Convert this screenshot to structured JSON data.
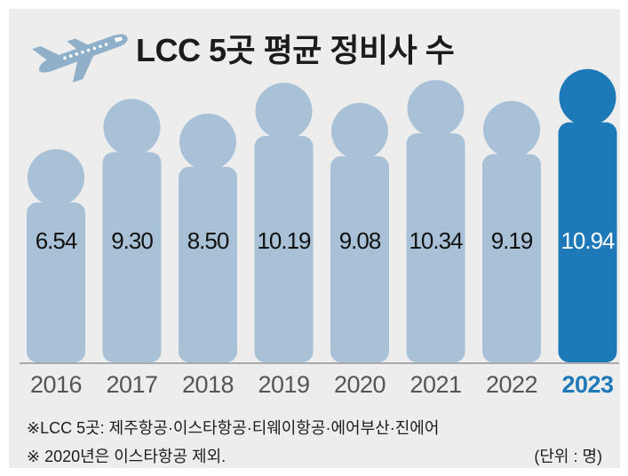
{
  "title": "LCC 5곳 평균 정비사 수",
  "notes": {
    "airlines": "※LCC 5곳: 제주항공·이스타항공·티웨이항공·에어부산·진에어",
    "exclusion": "※ 2020년은 이스타항공 제외.",
    "unit": "(단위 : 명)"
  },
  "colors": {
    "bar_default": "#a8c1d6",
    "bar_highlight": "#1d79b8",
    "year_default": "#555555",
    "year_highlight": "#1d79b8",
    "background": "#ededed",
    "plane_icon": "#8fb0c8"
  },
  "icons": {
    "plane": "airplane-icon"
  },
  "chart_data": {
    "type": "bar",
    "title": "LCC 5곳 평균 정비사 수",
    "categories": [
      "2016",
      "2017",
      "2018",
      "2019",
      "2020",
      "2021",
      "2022",
      "2023"
    ],
    "values": [
      6.54,
      9.3,
      8.5,
      10.19,
      9.08,
      10.34,
      9.19,
      10.94
    ],
    "labels": [
      "6.54",
      "9.30",
      "8.50",
      "10.19",
      "9.08",
      "10.34",
      "9.19",
      "10.94"
    ],
    "highlight": "2023",
    "xlabel": "",
    "ylabel": "",
    "unit": "명",
    "ylim": [
      0,
      11.5
    ],
    "grid": false,
    "legend": "none"
  }
}
